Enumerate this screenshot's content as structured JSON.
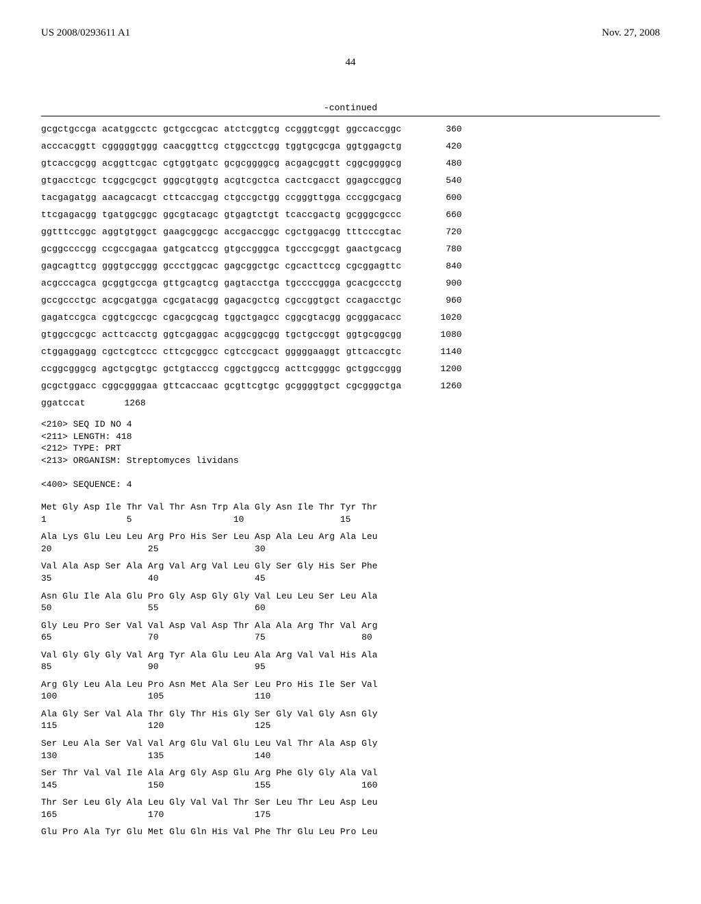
{
  "header": {
    "pubnum": "US 2008/0293611 A1",
    "date": "Nov. 27, 2008"
  },
  "pagenum": "44",
  "continued": "-continued",
  "dna_rows": [
    {
      "seq": "gcgctgccga acatggcctc gctgccgcac atctcggtcg ccgggtcggt ggccaccggc",
      "num": "360"
    },
    {
      "seq": "acccacggtt cgggggtggg caacggttcg ctggcctcgg tggtgcgcga ggtggagctg",
      "num": "420"
    },
    {
      "seq": "gtcaccgcgg acggttcgac cgtggtgatc gcgcggggcg acgagcggtt cggcggggcg",
      "num": "480"
    },
    {
      "seq": "gtgacctcgc tcggcgcgct gggcgtggtg acgtcgctca cactcgacct ggagccggcg",
      "num": "540"
    },
    {
      "seq": "tacgagatgg aacagcacgt cttcaccgag ctgccgctgg ccgggttgga cccggcgacg",
      "num": "600"
    },
    {
      "seq": "ttcgagacgg tgatggcggc ggcgtacagc gtgagtctgt tcaccgactg gcgggcgccc",
      "num": "660"
    },
    {
      "seq": "ggtttccggc aggtgtggct gaagcggcgc accgaccggc cgctggacgg tttcccgtac",
      "num": "720"
    },
    {
      "seq": "gcggccccgg ccgccgagaa gatgcatccg gtgccgggca tgcccgcggt gaactgcacg",
      "num": "780"
    },
    {
      "seq": "gagcagttcg gggtgccggg gccctggcac gagcggctgc cgcacttccg cgcggagttc",
      "num": "840"
    },
    {
      "seq": "acgcccagca gcggtgccga gttgcagtcg gagtacctga tgccccggga gcacgccctg",
      "num": "900"
    },
    {
      "seq": "gccgccctgc acgcgatgga cgcgatacgg gagacgctcg cgccggtgct ccagacctgc",
      "num": "960"
    },
    {
      "seq": "gagatccgca cggtcgccgc cgacgcgcag tggctgagcc cggcgtacgg gcgggacacc",
      "num": "1020"
    },
    {
      "seq": "gtggccgcgc acttcacctg ggtcgaggac acggcggcgg tgctgccggt ggtgcggcgg",
      "num": "1080"
    },
    {
      "seq": "ctggaggagg cgctcgtccc cttcgcggcc cgtccgcact gggggaaggt gttcaccgtc",
      "num": "1140"
    },
    {
      "seq": "ccggcgggcg agctgcgtgc gctgtacccg cggctggccg acttcggggc gctggccggg",
      "num": "1200"
    },
    {
      "seq": "gcgctggacc cggcggggaa gttcaccaac gcgttcgtgc gcggggtgct cgcgggctga",
      "num": "1260"
    },
    {
      "seq": "ggatccat",
      "num": "1268"
    }
  ],
  "meta": "<210> SEQ ID NO 4\n<211> LENGTH: 418\n<212> TYPE: PRT\n<213> ORGANISM: Streptomyces lividans\n\n<400> SEQUENCE: 4",
  "prt_rows": [
    {
      "aa": "Met Gly Asp Ile Thr Val Thr Asn Trp Ala Gly Asn Ile Thr Tyr Thr",
      "nm": "1               5                   10                  15"
    },
    {
      "aa": "Ala Lys Glu Leu Leu Arg Pro His Ser Leu Asp Ala Leu Arg Ala Leu",
      "nm": "20                  25                  30"
    },
    {
      "aa": "Val Ala Asp Ser Ala Arg Val Arg Val Leu Gly Ser Gly His Ser Phe",
      "nm": "35                  40                  45"
    },
    {
      "aa": "Asn Glu Ile Ala Glu Pro Gly Asp Gly Gly Val Leu Leu Ser Leu Ala",
      "nm": "50                  55                  60"
    },
    {
      "aa": "Gly Leu Pro Ser Val Val Asp Val Asp Thr Ala Ala Arg Thr Val Arg",
      "nm": "65                  70                  75                  80"
    },
    {
      "aa": "Val Gly Gly Gly Val Arg Tyr Ala Glu Leu Ala Arg Val Val His Ala",
      "nm": "85                  90                  95"
    },
    {
      "aa": "Arg Gly Leu Ala Leu Pro Asn Met Ala Ser Leu Pro His Ile Ser Val",
      "nm": "100                 105                 110"
    },
    {
      "aa": "Ala Gly Ser Val Ala Thr Gly Thr His Gly Ser Gly Val Gly Asn Gly",
      "nm": "115                 120                 125"
    },
    {
      "aa": "Ser Leu Ala Ser Val Val Arg Glu Val Glu Leu Val Thr Ala Asp Gly",
      "nm": "130                 135                 140"
    },
    {
      "aa": "Ser Thr Val Val Ile Ala Arg Gly Asp Glu Arg Phe Gly Gly Ala Val",
      "nm": "145                 150                 155                 160"
    },
    {
      "aa": "Thr Ser Leu Gly Ala Leu Gly Val Val Thr Ser Leu Thr Leu Asp Leu",
      "nm": "165                 170                 175"
    },
    {
      "aa": "Glu Pro Ala Tyr Glu Met Glu Gln His Val Phe Thr Glu Leu Pro Leu",
      "nm": ""
    }
  ]
}
